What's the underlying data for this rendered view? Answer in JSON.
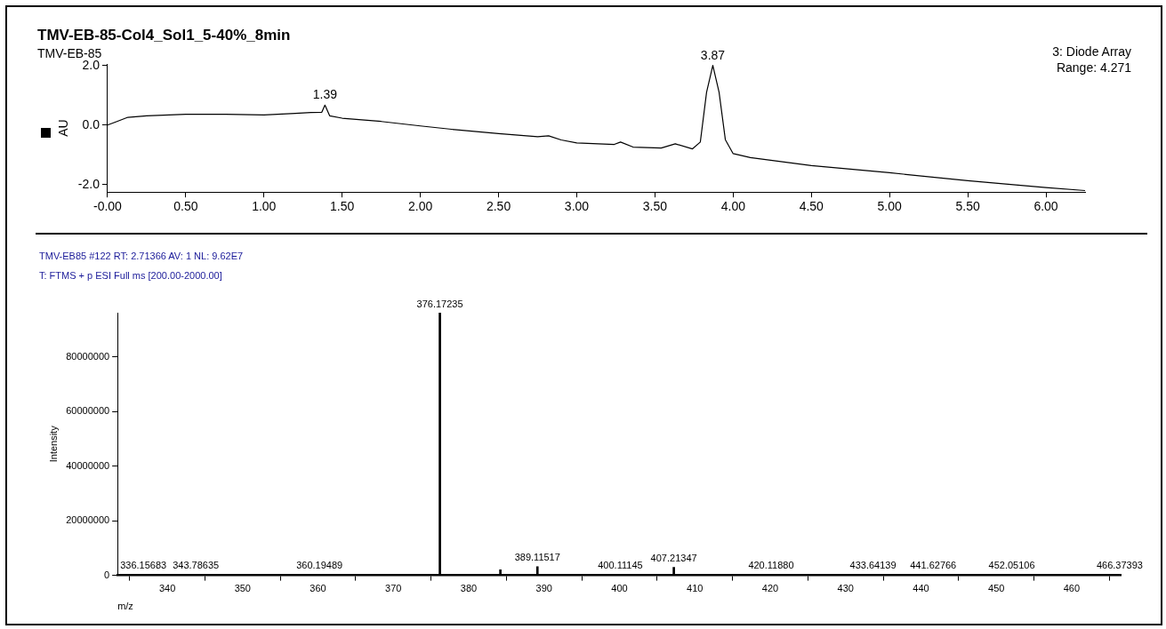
{
  "chart_data": [
    {
      "type": "line",
      "title": "TMV-EB-85-Col4_Sol1_5-40%_8min",
      "subtitle": "TMV-EB-85",
      "ylabel": "AU",
      "x": [
        0,
        0.06,
        0.13,
        0.25,
        0.5,
        0.75,
        1.0,
        1.2,
        1.3,
        1.37,
        1.39,
        1.42,
        1.5,
        1.75,
        2.0,
        2.25,
        2.5,
        2.75,
        2.82,
        2.9,
        3.0,
        3.24,
        3.28,
        3.36,
        3.54,
        3.63,
        3.74,
        3.79,
        3.83,
        3.87,
        3.91,
        3.95,
        4.0,
        4.11,
        4.5,
        5.0,
        5.5,
        6.0,
        6.25
      ],
      "series": [
        {
          "color": "#000000",
          "values": [
            0,
            0.12,
            0.26,
            0.31,
            0.36,
            0.36,
            0.34,
            0.39,
            0.42,
            0.43,
            0.67,
            0.31,
            0.23,
            0.12,
            -0.03,
            -0.17,
            -0.29,
            -0.39,
            -0.36,
            -0.5,
            -0.6,
            -0.65,
            -0.57,
            -0.74,
            -0.77,
            -0.63,
            -0.8,
            -0.57,
            1.1,
            2.0,
            1.1,
            -0.49,
            -0.96,
            -1.09,
            -1.36,
            -1.6,
            -1.87,
            -2.1,
            -2.2
          ]
        }
      ],
      "xlim": [
        0,
        6.25
      ],
      "ylim": [
        -2.25,
        2.05
      ],
      "xticks": [
        {
          "value": 0,
          "label": "-0.00"
        },
        {
          "value": 0.5,
          "label": "0.50"
        },
        {
          "value": 1,
          "label": "1.00"
        },
        {
          "value": 1.5,
          "label": "1.50"
        },
        {
          "value": 2,
          "label": "2.00"
        },
        {
          "value": 2.5,
          "label": "2.50"
        },
        {
          "value": 3,
          "label": "3.00"
        },
        {
          "value": 3.5,
          "label": "3.50"
        },
        {
          "value": 4,
          "label": "4.00"
        },
        {
          "value": 4.5,
          "label": "4.50"
        },
        {
          "value": 5,
          "label": "5.00"
        },
        {
          "value": 5.5,
          "label": "5.50"
        },
        {
          "value": 6,
          "label": "6.00"
        }
      ],
      "yticks": [
        {
          "value": -2,
          "label": "-2.0"
        },
        {
          "value": 0,
          "label": "0.0"
        },
        {
          "value": 2,
          "label": "2.0"
        }
      ],
      "marker": "none",
      "line_style": "solid",
      "grid": false,
      "annotations": [
        {
          "text": "1.39",
          "x": 1.39,
          "y": 0.67
        },
        {
          "text": "3.87",
          "x": 3.87,
          "y": 2.0
        },
        "3: Diode Array",
        "Range: 4.271"
      ]
    },
    {
      "type": "bar",
      "title": "TMV-EB85 #122  RT: 2.71366  AV: 1  NL: 9.62E7",
      "subtitle": "T: FTMS + p ESI Full ms [200.00-2000.00]",
      "xlabel": "m/z",
      "ylabel": "Intensity",
      "x": [
        336.15683,
        343.78635,
        360.19489,
        376.17235,
        384.2,
        389.11517,
        400.11145,
        407.21347,
        420.1188,
        433.64139,
        441.62766,
        452.05106,
        466.37393
      ],
      "series": [
        {
          "color": "#000000",
          "values": [
            400000,
            400000,
            400000,
            96200000,
            2000000,
            3200000,
            400000,
            2900000,
            400000,
            400000,
            400000,
            400000,
            400000
          ]
        }
      ],
      "xlim": [
        333.4,
        466.5
      ],
      "ylim": [
        0,
        96200000
      ],
      "xticks": [
        340,
        350,
        360,
        370,
        380,
        390,
        400,
        410,
        420,
        430,
        440,
        450,
        460
      ],
      "yticks": [
        0,
        20000000,
        40000000,
        60000000,
        80000000
      ],
      "grid": false,
      "annotations": [
        {
          "text": "336.15683",
          "x": 336.15683,
          "y": 400000
        },
        {
          "text": "343.78635",
          "x": 343.78635,
          "y": 400000
        },
        {
          "text": "360.19489",
          "x": 360.19489,
          "y": 400000
        },
        {
          "text": "376.17235",
          "x": 376.17235,
          "y": 96200000
        },
        {
          "text": "389.11517",
          "x": 389.11517,
          "y": 3200000
        },
        {
          "text": "400.11145",
          "x": 400.11145,
          "y": 400000
        },
        {
          "text": "407.21347",
          "x": 407.21347,
          "y": 2900000
        },
        {
          "text": "420.11880",
          "x": 420.1188,
          "y": 400000
        },
        {
          "text": "433.64139",
          "x": 433.64139,
          "y": 400000
        },
        {
          "text": "441.62766",
          "x": 441.62766,
          "y": 400000
        },
        {
          "text": "452.05106",
          "x": 452.05106,
          "y": 400000
        },
        {
          "text": "466.37393",
          "x": 466.37393,
          "y": 400000
        }
      ]
    }
  ]
}
